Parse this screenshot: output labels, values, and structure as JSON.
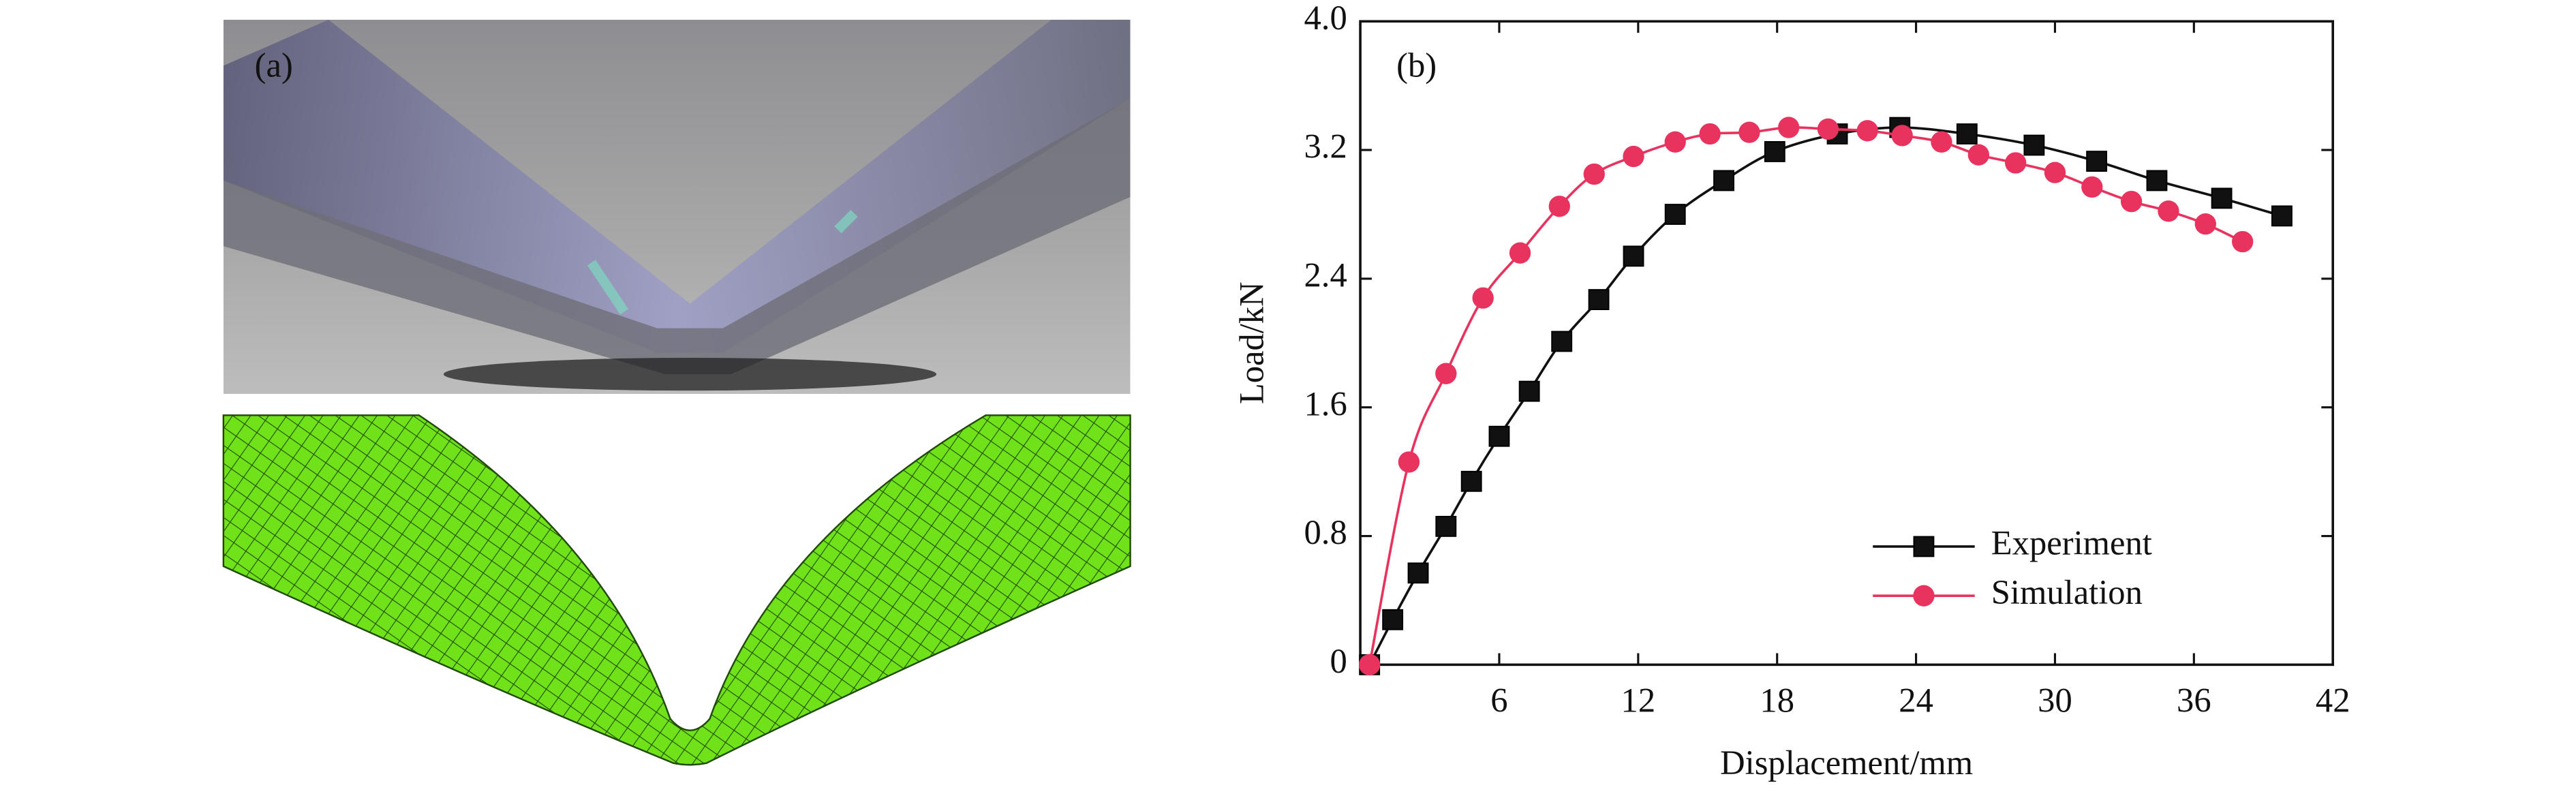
{
  "chart_data": {
    "type": "line",
    "panel_labels": [
      "(a)",
      "(b)"
    ],
    "xlabel": "Displacement/mm",
    "ylabel": "Load/kN",
    "xlim": [
      0,
      42
    ],
    "xticks": [
      6,
      12,
      18,
      24,
      30,
      36,
      42
    ],
    "ylim": [
      0,
      4
    ],
    "yticks": [
      0,
      0.8,
      1.6,
      2.4,
      3.2,
      {
        "value": 4,
        "label": "4.0"
      }
    ],
    "legend": "lower right",
    "series": [
      {
        "name": "Experiment",
        "color": "#111111",
        "marker": "square",
        "x": [
          0.4,
          1.4,
          2.5,
          3.7,
          4.8,
          6.0,
          7.3,
          8.7,
          10.3,
          11.8,
          13.6,
          15.7,
          17.9,
          20.6,
          23.3,
          26.2,
          29.1,
          31.8,
          34.4,
          37.2,
          39.8
        ],
        "values": [
          0,
          0.28,
          0.57,
          0.86,
          1.14,
          1.42,
          1.7,
          2.01,
          2.27,
          2.54,
          2.8,
          3.01,
          3.19,
          3.3,
          3.34,
          3.3,
          3.23,
          3.13,
          3.01,
          2.9,
          2.79
        ]
      },
      {
        "name": "Simulation",
        "color": "#e8335f",
        "marker": "circle",
        "x": [
          0.4,
          2.1,
          3.7,
          5.3,
          6.9,
          8.6,
          10.1,
          11.8,
          13.6,
          15.1,
          16.8,
          18.5,
          20.2,
          21.9,
          23.4,
          25.1,
          26.7,
          28.3,
          30.0,
          31.6,
          33.3,
          34.9,
          36.5,
          38.1
        ],
        "values": [
          0,
          1.26,
          1.81,
          2.28,
          2.56,
          2.85,
          3.05,
          3.16,
          3.25,
          3.3,
          3.31,
          3.34,
          3.33,
          3.32,
          3.29,
          3.25,
          3.17,
          3.12,
          3.06,
          2.97,
          2.88,
          2.82,
          2.74,
          2.63
        ]
      }
    ]
  }
}
